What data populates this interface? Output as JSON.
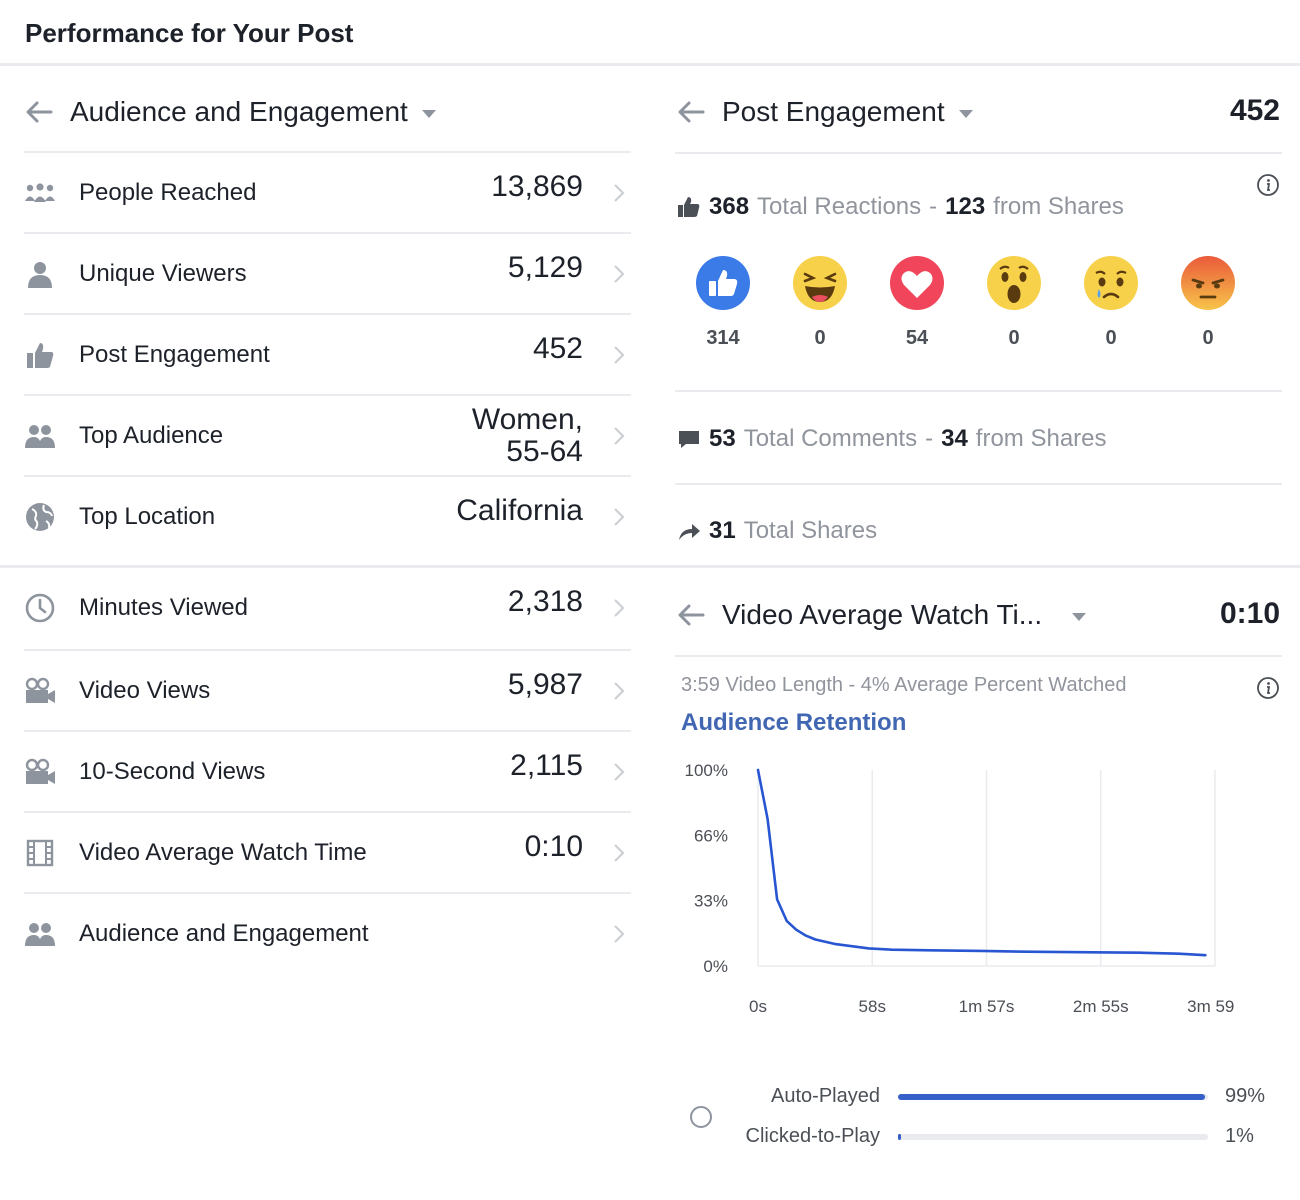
{
  "page": {
    "title": "Performance for Your Post"
  },
  "audience_panel": {
    "title": "Audience and Engagement",
    "rows": [
      {
        "label": "People Reached",
        "value": "13,869",
        "icon": "people-icon"
      },
      {
        "label": "Unique Viewers",
        "value": "5,129",
        "icon": "person-icon"
      },
      {
        "label": "Post Engagement",
        "value": "452",
        "icon": "thumbs-up-icon"
      },
      {
        "label": "Top Audience",
        "value_line1": "Women,",
        "value_line2": "55-64",
        "icon": "group-icon"
      },
      {
        "label": "Top Location",
        "value": "California",
        "icon": "globe-icon"
      }
    ]
  },
  "video_list": {
    "rows": [
      {
        "label": "Minutes Viewed",
        "value": "2,318",
        "icon": "clock-icon"
      },
      {
        "label": "Video Views",
        "value": "5,987",
        "icon": "video-camera-icon"
      },
      {
        "label": "10-Second Views",
        "value": "2,115",
        "icon": "video-camera-icon"
      },
      {
        "label": "Video Average Watch Time",
        "value": "0:10",
        "icon": "film-icon"
      },
      {
        "label": "Audience and Engagement",
        "value": "",
        "icon": "group-icon"
      }
    ]
  },
  "engagement_panel": {
    "title": "Post Engagement",
    "total": "452",
    "reactions": {
      "total": "368",
      "total_text": "Total Reactions",
      "shares": "123",
      "shares_text": "from Shares",
      "items": [
        {
          "name": "like",
          "count": "314"
        },
        {
          "name": "haha",
          "count": "0"
        },
        {
          "name": "love",
          "count": "54"
        },
        {
          "name": "wow",
          "count": "0"
        },
        {
          "name": "sad",
          "count": "0"
        },
        {
          "name": "angry",
          "count": "0"
        }
      ]
    },
    "comments": {
      "total": "53",
      "total_text": "Total Comments",
      "shares": "34",
      "shares_text": "from Shares"
    },
    "shares": {
      "total": "31",
      "total_text": "Total Shares"
    },
    "separator": "-"
  },
  "watch_panel": {
    "title": "Video Average Watch Ti...",
    "total": "0:10",
    "subtitle": "3:59 Video Length - 4% Average Percent Watched",
    "chart_title": "Audience Retention",
    "playback": [
      {
        "label": "Auto-Played",
        "percent": 99,
        "pct_text": "99%"
      },
      {
        "label": "Clicked-to-Play",
        "percent": 1,
        "pct_text": "1%"
      }
    ]
  },
  "chart_data": {
    "type": "line",
    "title": "Audience Retention",
    "x_ticks": [
      "0s",
      "58s",
      "1m 57s",
      "2m 55s",
      "3m 59s"
    ],
    "y_ticks": [
      "100%",
      "66%",
      "33%",
      "0%"
    ],
    "x_unit": "seconds",
    "xlim": [
      0,
      239
    ],
    "ylim": [
      0,
      100
    ],
    "grid": true,
    "series": [
      {
        "x": [
          0,
          5,
          10,
          15,
          20,
          25,
          30,
          40,
          50,
          58,
          70,
          90,
          117,
          140,
          175,
          200,
          220,
          234
        ],
        "y": [
          100,
          75,
          34,
          23,
          18.5,
          15.5,
          13.5,
          11.3,
          10,
          9,
          8.3,
          8,
          7.7,
          7.3,
          7,
          6.8,
          6.3,
          5.5
        ],
        "color": "#2855d1"
      }
    ]
  }
}
